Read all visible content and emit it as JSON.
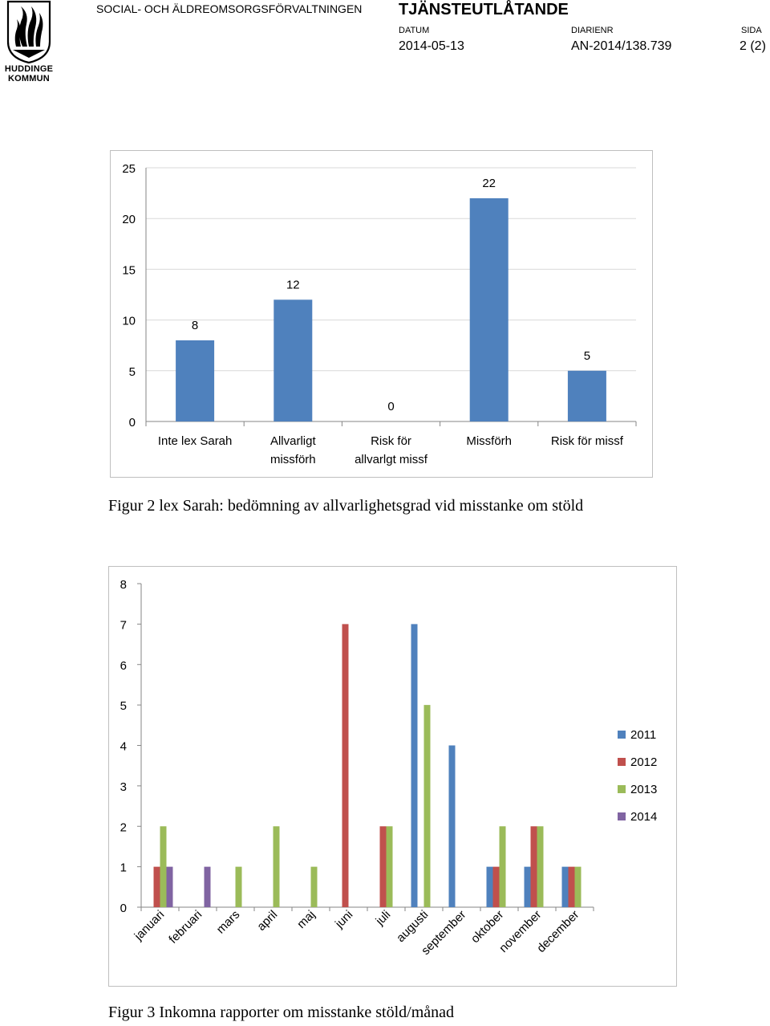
{
  "header": {
    "logo_lines": [
      "HUDDINGE",
      "KOMMUN"
    ],
    "department": "SOCIAL- OCH ÄLDREOMSORGSFÖRVALTNINGEN",
    "doc_type": "TJÄNSTEUTLÅTANDE",
    "datum_label": "DATUM",
    "datum": "2014-05-13",
    "diarienr_label": "DIARIENR",
    "diarienr": "AN-2014/138.739",
    "sida_label": "SIDA",
    "sida": "2 (2)"
  },
  "chart_data": [
    {
      "type": "bar",
      "title": "",
      "categories": [
        [
          "Inte lex Sarah"
        ],
        [
          "Allvarligt",
          "missförh"
        ],
        [
          "Risk för",
          "allvarlgt missf"
        ],
        [
          "Missförh"
        ],
        [
          "Risk för missf"
        ]
      ],
      "values": [
        8,
        12,
        0,
        22,
        5
      ],
      "data_labels": [
        "8",
        "12",
        "0",
        "22",
        "5"
      ],
      "ylim": [
        0,
        25
      ],
      "yticks": [
        0,
        5,
        10,
        15,
        20,
        25
      ],
      "grid": true,
      "bar_color": "#4f81bd",
      "legend": "none"
    },
    {
      "type": "bar",
      "title": "",
      "categories": [
        "januari",
        "februari",
        "mars",
        "april",
        "maj",
        "juni",
        "juli",
        "augusti",
        "september",
        "oktober",
        "november",
        "december"
      ],
      "series": [
        {
          "name": "2011",
          "color": "#4f81bd",
          "values": [
            0,
            0,
            0,
            0,
            0,
            0,
            0,
            7,
            4,
            1,
            1,
            1
          ]
        },
        {
          "name": "2012",
          "color": "#c0504d",
          "values": [
            1,
            0,
            0,
            0,
            0,
            7,
            2,
            0,
            0,
            1,
            2,
            1
          ]
        },
        {
          "name": "2013",
          "color": "#9bbb59",
          "values": [
            2,
            0,
            1,
            2,
            1,
            0,
            2,
            5,
            0,
            2,
            2,
            1
          ]
        },
        {
          "name": "2014",
          "color": "#8064a2",
          "values": [
            1,
            1,
            0,
            0,
            0,
            0,
            0,
            0,
            0,
            0,
            0,
            0
          ]
        }
      ],
      "ylim": [
        0,
        8
      ],
      "yticks": [
        0,
        1,
        2,
        3,
        4,
        5,
        6,
        7,
        8
      ],
      "grid": false,
      "legend": "right"
    }
  ],
  "captions": {
    "fig2": "Figur 2 lex Sarah: bedömning av allvarlighetsgrad vid misstanke om stöld",
    "fig3": "Figur 3 Inkomna rapporter om misstanke stöld/månad"
  }
}
